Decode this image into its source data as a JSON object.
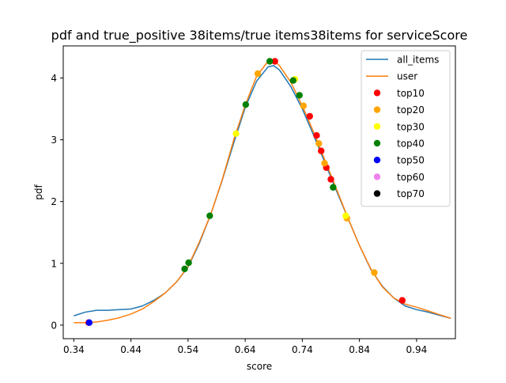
{
  "chart_data": {
    "type": "line",
    "title": "pdf and true_positive 38items/true items38items for serviceScore",
    "xlabel": "score",
    "ylabel": "pdf",
    "xlim": [
      0.3215,
      1.008
    ],
    "ylim": [
      -0.22,
      4.52
    ],
    "xticks": [
      0.34,
      0.44,
      0.54,
      0.64,
      0.74,
      0.84,
      0.94
    ],
    "xtick_labels": [
      "0.34",
      "0.44",
      "0.54",
      "0.64",
      "0.74",
      "0.84",
      "0.94"
    ],
    "yticks": [
      0,
      1,
      2,
      3,
      4
    ],
    "ytick_labels": [
      "0",
      "1",
      "2",
      "3",
      "4"
    ],
    "grid": false,
    "legend_position": "top-right",
    "series": [
      {
        "name": "all_items",
        "color": "#1f77b4",
        "x": [
          0.34,
          0.36,
          0.38,
          0.4,
          0.42,
          0.44,
          0.46,
          0.48,
          0.5,
          0.52,
          0.54,
          0.56,
          0.58,
          0.6,
          0.62,
          0.64,
          0.66,
          0.68,
          0.69,
          0.7,
          0.72,
          0.74,
          0.76,
          0.78,
          0.8,
          0.82,
          0.84,
          0.86,
          0.88,
          0.9,
          0.92,
          0.94,
          0.96,
          0.98,
          1.0
        ],
        "y": [
          0.15,
          0.21,
          0.24,
          0.24,
          0.25,
          0.26,
          0.31,
          0.4,
          0.52,
          0.7,
          0.94,
          1.33,
          1.8,
          2.35,
          2.95,
          3.52,
          3.95,
          4.18,
          4.2,
          4.13,
          3.86,
          3.5,
          3.07,
          2.62,
          2.17,
          1.73,
          1.29,
          0.9,
          0.63,
          0.44,
          0.31,
          0.25,
          0.21,
          0.16,
          0.11
        ]
      },
      {
        "name": "user",
        "color": "#ff7f0e",
        "x": [
          0.34,
          0.36,
          0.38,
          0.4,
          0.42,
          0.44,
          0.46,
          0.48,
          0.5,
          0.52,
          0.54,
          0.56,
          0.58,
          0.6,
          0.62,
          0.64,
          0.66,
          0.68,
          0.69,
          0.7,
          0.72,
          0.74,
          0.76,
          0.78,
          0.8,
          0.82,
          0.84,
          0.86,
          0.88,
          0.9,
          0.92,
          0.94,
          0.96,
          0.98,
          1.0
        ],
        "y": [
          0.04,
          0.04,
          0.05,
          0.08,
          0.12,
          0.18,
          0.26,
          0.38,
          0.52,
          0.7,
          0.95,
          1.35,
          1.8,
          2.36,
          3.0,
          3.56,
          4.03,
          4.27,
          4.29,
          4.2,
          3.93,
          3.55,
          3.12,
          2.66,
          2.2,
          1.73,
          1.29,
          0.91,
          0.62,
          0.44,
          0.34,
          0.29,
          0.23,
          0.17,
          0.11
        ]
      }
    ],
    "scatter": [
      {
        "name": "top10",
        "color": "#ff0000",
        "points": [
          [
            0.366,
            0.04
          ],
          [
            0.692,
            4.27
          ],
          [
            0.753,
            3.38
          ],
          [
            0.765,
            3.07
          ],
          [
            0.773,
            2.82
          ],
          [
            0.782,
            2.55
          ],
          [
            0.79,
            2.36
          ],
          [
            0.915,
            0.4
          ]
        ]
      },
      {
        "name": "top20",
        "color": "#ffa500",
        "points": [
          [
            0.662,
            4.07
          ],
          [
            0.742,
            3.55
          ],
          [
            0.769,
            2.94
          ],
          [
            0.779,
            2.62
          ],
          [
            0.818,
            1.73
          ],
          [
            0.866,
            0.85
          ]
        ]
      },
      {
        "name": "top30",
        "color": "#ffff00",
        "points": [
          [
            0.624,
            3.1
          ],
          [
            0.727,
            3.98
          ],
          [
            0.816,
            1.77
          ]
        ]
      },
      {
        "name": "top40",
        "color": "#008000",
        "points": [
          [
            0.534,
            0.91
          ],
          [
            0.541,
            1.01
          ],
          [
            0.578,
            1.77
          ],
          [
            0.641,
            3.57
          ],
          [
            0.683,
            4.27
          ],
          [
            0.724,
            3.96
          ],
          [
            0.735,
            3.72
          ],
          [
            0.794,
            2.23
          ]
        ]
      },
      {
        "name": "top50",
        "color": "#0000ff",
        "points": [
          [
            0.367,
            0.04
          ]
        ]
      },
      {
        "name": "top60",
        "color": "#ee82ee",
        "points": []
      },
      {
        "name": "top70",
        "color": "#000000",
        "points": []
      }
    ]
  }
}
